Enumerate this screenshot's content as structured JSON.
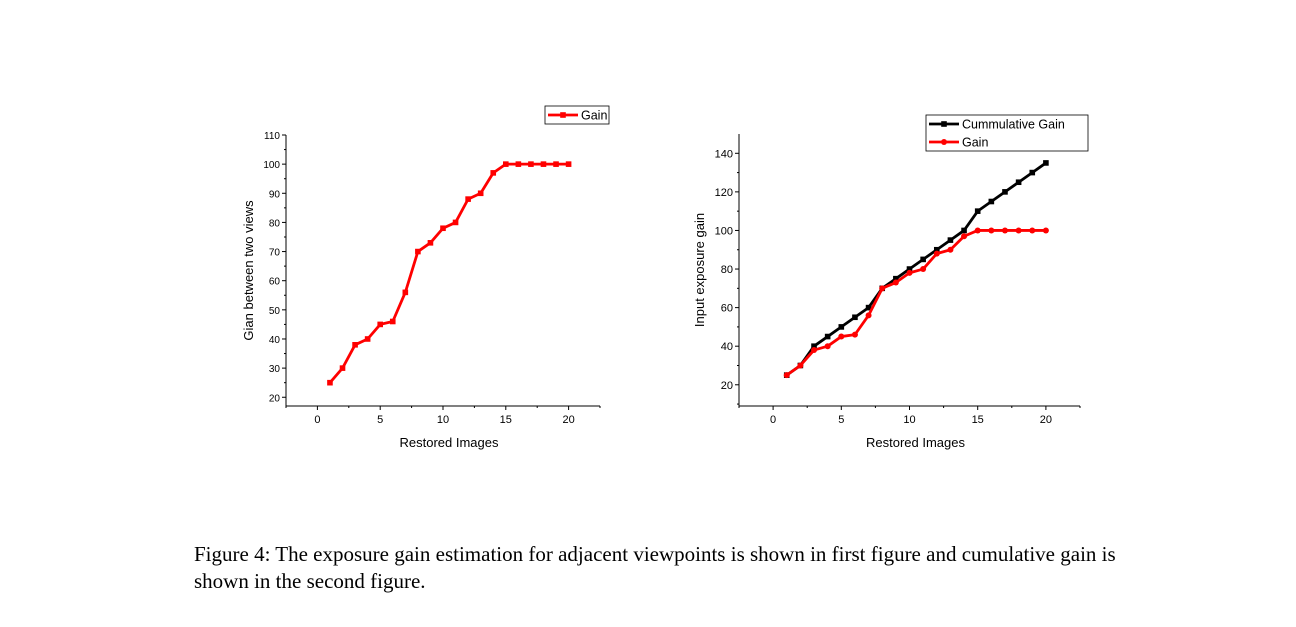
{
  "chart_data": [
    {
      "type": "line",
      "xlabel": "Restored Images",
      "ylabel": "Gian between two views",
      "xlim": [
        -2.5,
        22.5
      ],
      "ylim": [
        17,
        110
      ],
      "xticks": [
        0,
        5,
        10,
        15,
        20
      ],
      "yticks": [
        20,
        30,
        40,
        50,
        60,
        70,
        80,
        90,
        100,
        110
      ],
      "grid": false,
      "legend_position": "top-right",
      "series": [
        {
          "name": "Gain",
          "color": "#ff0000",
          "marker": "square",
          "x": [
            1,
            2,
            3,
            4,
            5,
            6,
            7,
            8,
            9,
            10,
            11,
            12,
            13,
            14,
            15,
            16,
            17,
            18,
            19,
            20
          ],
          "y": [
            25,
            30,
            38,
            40,
            45,
            46,
            56,
            70,
            73,
            78,
            80,
            88,
            90,
            97,
            100,
            100,
            100,
            100,
            100,
            100
          ]
        }
      ]
    },
    {
      "type": "line",
      "xlabel": "Restored Images",
      "ylabel": "Input exposure gain",
      "xlim": [
        -2.5,
        22.5
      ],
      "ylim": [
        9,
        150
      ],
      "xticks": [
        0,
        5,
        10,
        15,
        20
      ],
      "yticks": [
        20,
        40,
        60,
        80,
        100,
        120,
        140
      ],
      "grid": false,
      "legend_position": "top-right",
      "series": [
        {
          "name": "Cummulative Gain",
          "color": "#000000",
          "marker": "square",
          "x": [
            1,
            2,
            3,
            4,
            5,
            6,
            7,
            8,
            9,
            10,
            11,
            12,
            13,
            14,
            15,
            16,
            17,
            18,
            19,
            20
          ],
          "y": [
            25,
            30,
            40,
            45,
            50,
            55,
            60,
            70,
            75,
            80,
            85,
            90,
            95,
            100,
            110,
            115,
            120,
            125,
            130,
            135
          ]
        },
        {
          "name": "Gain",
          "color": "#ff0000",
          "marker": "circle",
          "x": [
            1,
            2,
            3,
            4,
            5,
            6,
            7,
            8,
            9,
            10,
            11,
            12,
            13,
            14,
            15,
            16,
            17,
            18,
            19,
            20
          ],
          "y": [
            25,
            30,
            38,
            40,
            45,
            46,
            56,
            70,
            73,
            78,
            80,
            88,
            90,
            97,
            100,
            100,
            100,
            100,
            100,
            100
          ]
        }
      ]
    }
  ],
  "caption": "Figure 4: The exposure gain estimation for adjacent viewpoints is shown in first figure and cumulative gain is shown in the second figure."
}
